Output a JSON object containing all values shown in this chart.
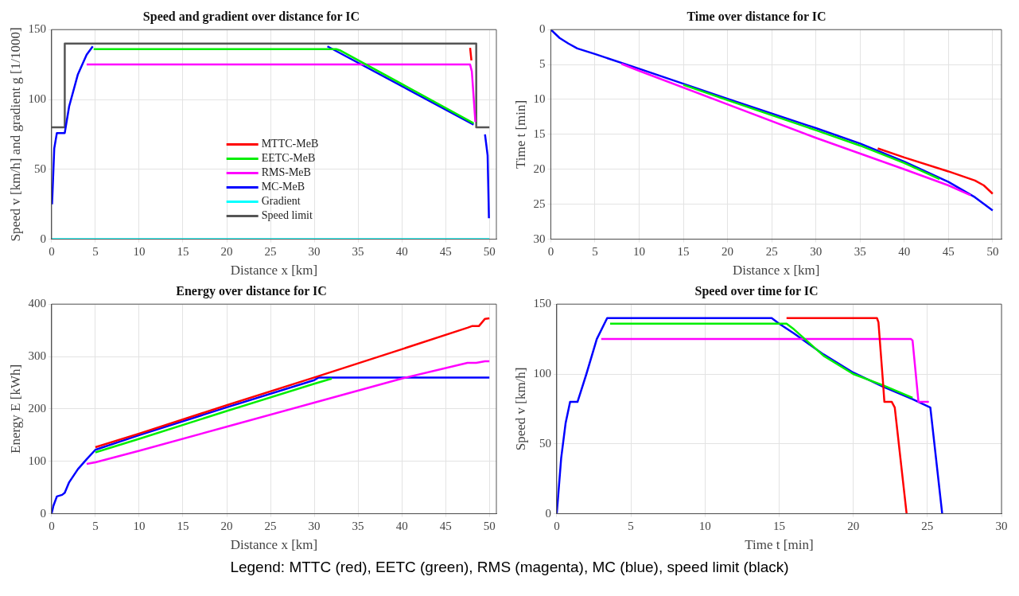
{
  "chart_data": [
    {
      "type": "line",
      "title": "Speed and gradient over distance for IC",
      "xlabel": "Distance x [km]",
      "ylabel": "Speed v [km/h] and gradient g [1/1000]",
      "xlim": [
        0,
        50.8
      ],
      "ylim": [
        0,
        150
      ],
      "xticks": [
        0,
        5,
        10,
        15,
        20,
        25,
        30,
        35,
        40,
        45,
        50
      ],
      "yticks": [
        0,
        50,
        100,
        150
      ],
      "grid": true,
      "legend": "bottom",
      "marker": "none",
      "line_style": "solid",
      "series": [
        {
          "name": "MTTC-MeB",
          "color": "#ff0000",
          "x": [
            47.8,
            47.95
          ],
          "values": [
            137,
            128
          ]
        },
        {
          "name": "EETC-MeB",
          "color": "#00ee00",
          "x": [
            4.8,
            32.5,
            33,
            48.2
          ],
          "values": [
            136,
            136,
            135,
            83
          ]
        },
        {
          "name": "RMS-MeB",
          "color": "#ff00ff",
          "x": [
            4,
            47.8,
            48,
            48.4
          ],
          "values": [
            125,
            125,
            120,
            84
          ]
        },
        {
          "name": "MC-MeB",
          "color": "#0000ff",
          "x": [
            0.05,
            0.3,
            0.6,
            1.5,
            2,
            3,
            4,
            4.7,
            18,
            31.5,
            48.2,
            49,
            49.5,
            49.8,
            49.95
          ],
          "values": [
            25,
            65,
            76,
            76,
            95,
            118,
            132,
            138,
            null,
            138,
            82,
            null,
            75,
            60,
            15
          ]
        },
        {
          "name": "Gradient",
          "color": "#00ffff",
          "x": [
            0,
            50
          ],
          "values": [
            0,
            0
          ]
        },
        {
          "name": "Speed limit",
          "color": "#555555",
          "x": [
            0,
            1.5,
            1.5,
            48.5,
            48.5,
            50
          ],
          "values": [
            80,
            80,
            140,
            140,
            80,
            80
          ]
        }
      ]
    },
    {
      "type": "line",
      "title": "Time over distance for IC",
      "xlabel": "Distance x [km]",
      "ylabel": "Time t [min]",
      "xlim": [
        0,
        51
      ],
      "ylim": [
        30,
        0
      ],
      "xticks": [
        0,
        5,
        10,
        15,
        20,
        25,
        30,
        35,
        40,
        45,
        50
      ],
      "yticks": [
        0,
        5,
        10,
        15,
        20,
        25,
        30
      ],
      "grid": true,
      "marker": "none",
      "line_style": "solid",
      "series": [
        {
          "color": "#ff0000",
          "x": [
            37,
            40,
            45,
            48,
            49,
            50
          ],
          "values": [
            17,
            18.3,
            20.3,
            21.6,
            22.3,
            23.5
          ]
        },
        {
          "color": "#00ee00",
          "x": [
            15,
            20,
            30,
            35,
            40,
            44
          ],
          "values": [
            7.9,
            10.1,
            14.4,
            16.6,
            19.1,
            21.4
          ]
        },
        {
          "color": "#ff00ff",
          "x": [
            8,
            10,
            20,
            30,
            40,
            45,
            47.5
          ],
          "values": [
            4.9,
            5.9,
            10.7,
            15.5,
            20,
            22.3,
            23.7
          ]
        },
        {
          "color": "#0000ff",
          "x": [
            0,
            1,
            2,
            3,
            5,
            10,
            20,
            30,
            35,
            40,
            45,
            48,
            50
          ],
          "values": [
            0,
            1.2,
            2,
            2.7,
            3.5,
            5.6,
            9.9,
            14.1,
            16.3,
            18.9,
            21.8,
            24,
            25.9
          ]
        }
      ]
    },
    {
      "type": "line",
      "title": "Energy over distance for IC",
      "xlabel": "Distance x [km]",
      "ylabel": "Energy E [kWh]",
      "xlim": [
        0,
        50.8
      ],
      "ylim": [
        0,
        400
      ],
      "xticks": [
        0,
        5,
        10,
        15,
        20,
        25,
        30,
        35,
        40,
        45,
        50
      ],
      "yticks": [
        0,
        100,
        200,
        300,
        400
      ],
      "grid": true,
      "marker": "none",
      "line_style": "solid",
      "series": [
        {
          "color": "#ff0000",
          "x": [
            5,
            10,
            20,
            30,
            40,
            47.5,
            48,
            48.8,
            49.5,
            50
          ],
          "values": [
            127,
            153,
            207,
            260,
            314,
            355,
            358,
            358,
            372,
            373
          ]
        },
        {
          "color": "#00ee00",
          "x": [
            5,
            10,
            20,
            30,
            32
          ],
          "values": [
            117,
            143,
            196,
            248,
            258
          ]
        },
        {
          "color": "#ff00ff",
          "x": [
            4,
            5,
            10,
            20,
            30,
            40,
            47.5,
            48.5,
            49.5,
            50
          ],
          "values": [
            95,
            98,
            120,
            166,
            212,
            258,
            288,
            288,
            291,
            291
          ]
        },
        {
          "color": "#0000ff",
          "x": [
            0,
            0.2,
            0.6,
            1.2,
            1.5,
            2,
            3,
            4,
            5,
            10,
            20,
            30,
            30.5,
            50
          ],
          "values": [
            0,
            15,
            33,
            36,
            40,
            60,
            85,
            104,
            122,
            150,
            203,
            255,
            260,
            260
          ]
        }
      ]
    },
    {
      "type": "line",
      "title": "Speed over time for IC",
      "xlabel": "Time t [min]",
      "ylabel": "Speed v [km/h]",
      "xlim": [
        0,
        30
      ],
      "ylim": [
        0,
        150
      ],
      "xticks": [
        0,
        5,
        10,
        15,
        20,
        25,
        30
      ],
      "yticks": [
        0,
        50,
        100,
        150
      ],
      "grid": true,
      "marker": "none",
      "line_style": "solid",
      "annotations": [
        "Legend: MTTC (red), EETC (green), RMS (magenta), MC (blue), speed limit (black)"
      ],
      "series": [
        {
          "color": "#ff0000",
          "x": [
            15.5,
            21.6,
            21.7,
            22,
            22.1,
            22.6,
            22.8,
            23.6
          ],
          "values": [
            140,
            140,
            137,
            95,
            80,
            80,
            76,
            0
          ]
        },
        {
          "color": "#00ee00",
          "x": [
            3.6,
            15.5,
            16,
            18,
            20,
            22,
            24
          ],
          "values": [
            136,
            136,
            132,
            113,
            100,
            92,
            83
          ]
        },
        {
          "color": "#ff00ff",
          "x": [
            3,
            23.9,
            24,
            24.4,
            25.1
          ],
          "values": [
            125,
            125,
            124,
            80,
            80
          ]
        },
        {
          "color": "#0000ff",
          "x": [
            0,
            0.3,
            0.6,
            0.9,
            1.4,
            2,
            2.7,
            3.4,
            14.5,
            15,
            16,
            18,
            20,
            22,
            24,
            25.2,
            26
          ],
          "values": [
            0,
            40,
            65,
            80,
            80,
            100,
            125,
            140,
            140,
            136,
            129,
            114,
            101,
            91,
            82,
            76,
            0
          ]
        }
      ]
    }
  ]
}
